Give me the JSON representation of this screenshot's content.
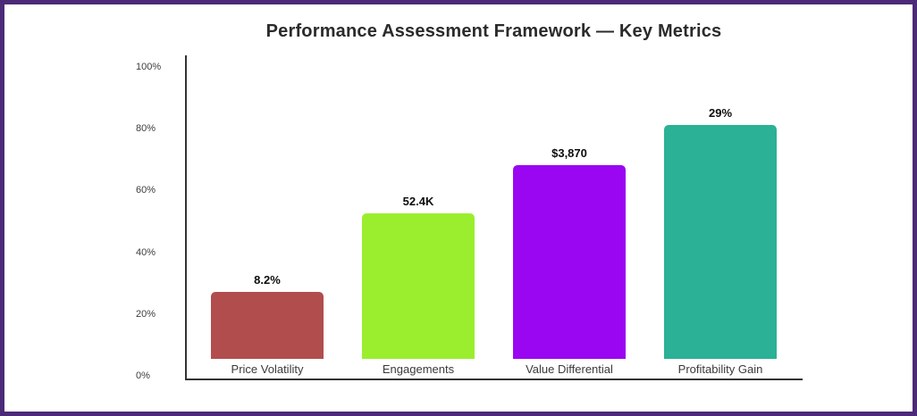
{
  "window": {
    "border_color": "#4c2a78",
    "background": "#ffffff"
  },
  "chart_data": {
    "type": "bar",
    "title": "Performance Assessment Framework — Key Metrics",
    "categories": [
      "Price Volatility",
      "Engagements",
      "Value Differential",
      "Profitability Gain"
    ],
    "value_labels": [
      "8.2%",
      "52.4K",
      "$3,870",
      "29%"
    ],
    "bar_colors": [
      "#b24d4e",
      "#9aee2e",
      "#9a05f2",
      "#2ab196"
    ],
    "bar_top_pct_on_axis": [
      27.2,
      52.6,
      68.2,
      81.2
    ],
    "yaxis": {
      "tick_labels": [
        "100%",
        "80%",
        "60%",
        "40%",
        "20%",
        "0%"
      ],
      "tick_pcts": [
        100,
        80,
        60,
        40,
        20,
        0
      ],
      "range": [
        0,
        100
      ]
    },
    "grid": false,
    "legend": false,
    "axis_color": "#333333",
    "text_colors": {
      "title": "#2b2b2b",
      "ticks": "#3c3c3c",
      "categories": "#3a3a3a",
      "value_labels": "#0d0d0d"
    }
  }
}
